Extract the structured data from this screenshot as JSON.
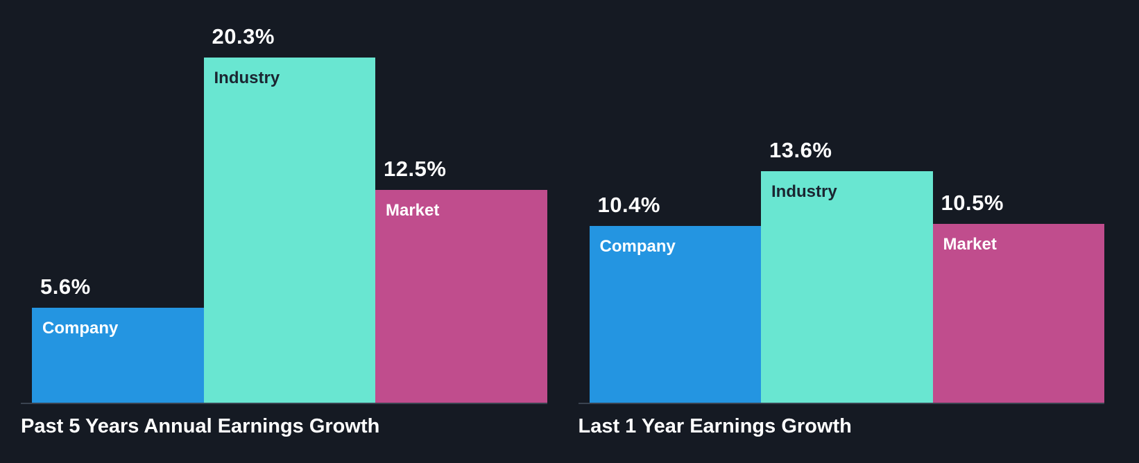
{
  "page": {
    "background_color": "#151a23",
    "baseline_color": "#3a4350",
    "value_label_color": "#ffffff",
    "title_color": "#ffffff"
  },
  "chart_data": [
    {
      "type": "bar",
      "title": "Past 5 Years Annual Earnings Growth",
      "categories": [
        "Company",
        "Industry",
        "Market"
      ],
      "values": [
        5.6,
        20.3,
        12.5
      ],
      "value_labels": [
        "5.6%",
        "20.3%",
        "12.5%"
      ],
      "ylim": [
        0,
        20.3
      ],
      "grid": false,
      "legend_position": "none",
      "bar_colors": [
        "#2495e1",
        "#69e6d1",
        "#c04d8d"
      ],
      "category_label_colors": [
        "#ffffff",
        "#1b2531",
        "#ffffff"
      ]
    },
    {
      "type": "bar",
      "title": "Last 1 Year Earnings Growth",
      "categories": [
        "Company",
        "Industry",
        "Market"
      ],
      "values": [
        10.4,
        13.6,
        10.5
      ],
      "value_labels": [
        "10.4%",
        "13.6%",
        "10.5%"
      ],
      "ylim": [
        0,
        20.3
      ],
      "grid": false,
      "legend_position": "none",
      "bar_colors": [
        "#2495e1",
        "#69e6d1",
        "#c04d8d"
      ],
      "category_label_colors": [
        "#ffffff",
        "#1b2531",
        "#ffffff"
      ]
    }
  ]
}
